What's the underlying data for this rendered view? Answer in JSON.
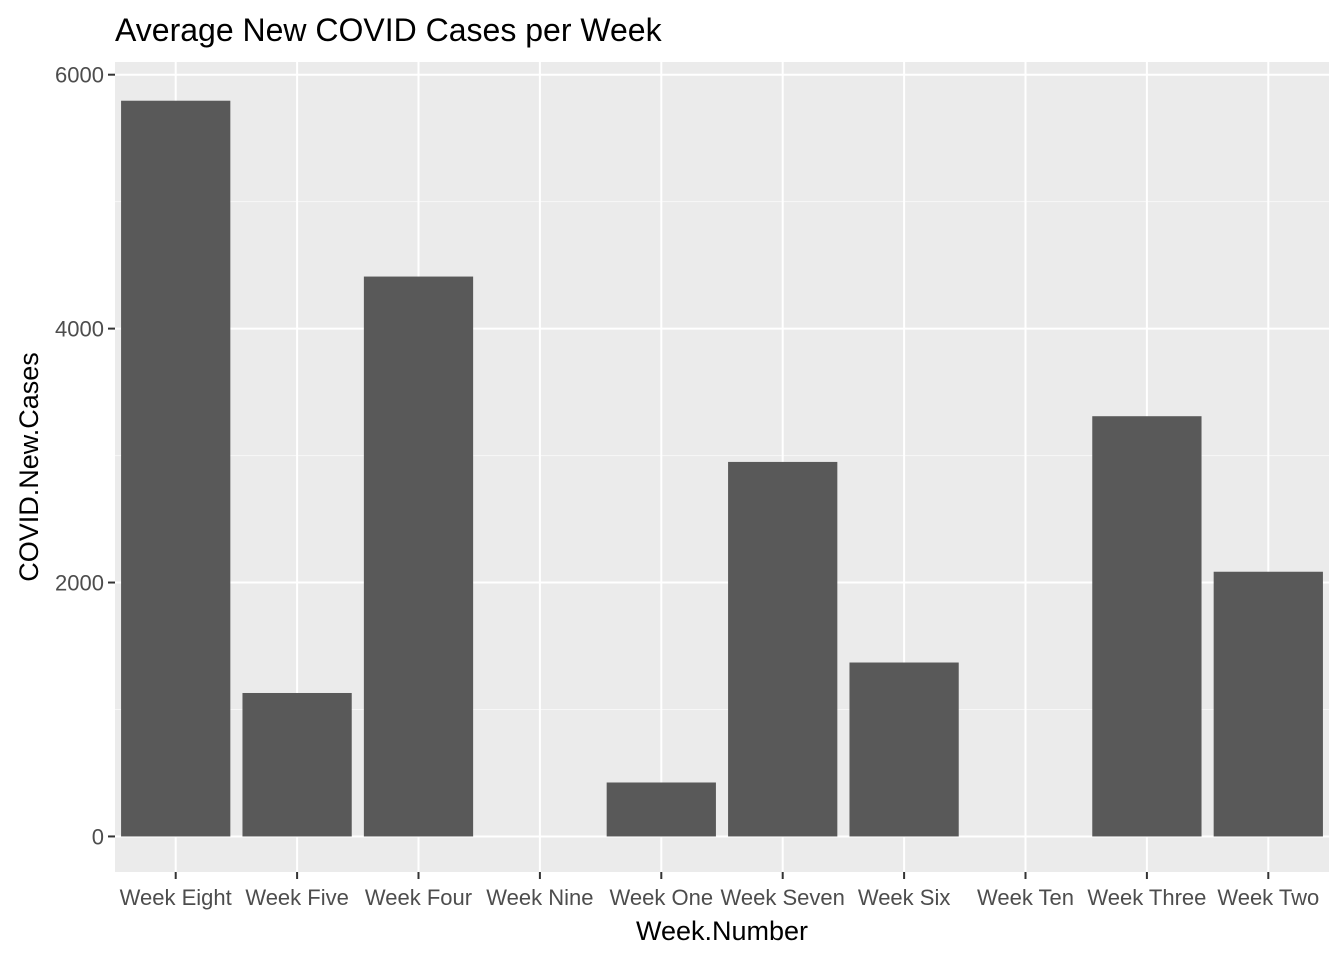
{
  "chart_data": {
    "type": "bar",
    "title": "Average New COVID Cases per Week",
    "xlabel": "Week.Number",
    "ylabel": "COVID.New.Cases",
    "categories": [
      "Week Eight",
      "Week Five",
      "Week Four",
      "Week Nine",
      "Week One",
      "Week Seven",
      "Week Six",
      "Week Ten",
      "Week Three",
      "Week Two"
    ],
    "values": [
      5795,
      1130,
      4410,
      0,
      425,
      2950,
      1370,
      0,
      3310,
      2085
    ],
    "ylim": [
      -280,
      6100
    ],
    "yticks": [
      0,
      2000,
      4000,
      6000
    ],
    "ytick_labels": [
      "0",
      "2000",
      "4000",
      "6000"
    ],
    "grid": true,
    "legend": "none",
    "colors": {
      "bar": "#595959",
      "panel": "#ebebeb",
      "grid_major": "#ffffff",
      "tick": "#333333"
    }
  }
}
